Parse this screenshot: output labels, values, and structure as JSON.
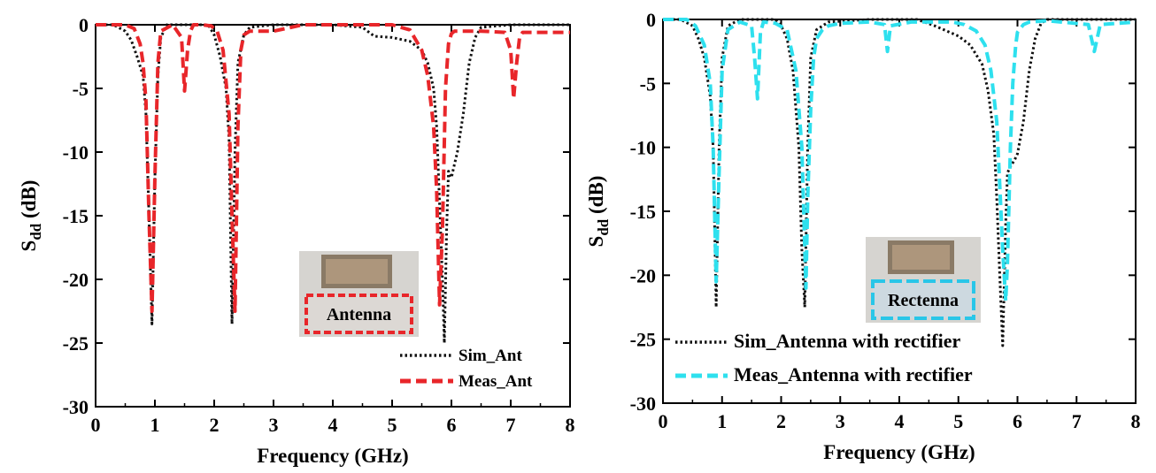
{
  "chart_data": [
    {
      "type": "line",
      "xlabel": "Frequency (GHz)",
      "ylabel_main": "S",
      "ylabel_sub": "dd",
      "ylabel_unit": " (dB)",
      "xlim": [
        0,
        8
      ],
      "ylim": [
        -30,
        0
      ],
      "xticks": [
        "0",
        "1",
        "2",
        "3",
        "4",
        "5",
        "6",
        "7",
        "8"
      ],
      "yticks": [
        "0",
        "-5",
        "-10",
        "-15",
        "-20",
        "-25",
        "-30"
      ],
      "grid": false,
      "legend_position": "bottom-right",
      "inset_label": "Antenna",
      "inset_color": "#e8262a",
      "series": [
        {
          "name": "Sim_Ant",
          "color": "#111111",
          "style": "dotted",
          "x": [
            0.0,
            0.3,
            0.5,
            0.6,
            0.7,
            0.8,
            0.85,
            0.9,
            0.95,
            1.0,
            1.05,
            1.1,
            1.2,
            1.5,
            1.9,
            2.0,
            2.1,
            2.2,
            2.25,
            2.3,
            2.35,
            2.4,
            2.5,
            2.6,
            3.0,
            4.0,
            4.5,
            4.7,
            5.0,
            5.3,
            5.5,
            5.6,
            5.7,
            5.75,
            5.8,
            5.85,
            5.88,
            5.92,
            5.95,
            6.0,
            6.05,
            6.1,
            6.2,
            6.3,
            6.4,
            6.5,
            7.0,
            8.0
          ],
          "y": [
            0,
            0,
            -0.5,
            -1.2,
            -2.5,
            -4,
            -7,
            -15,
            -23.5,
            -12,
            -4,
            -1,
            0,
            0,
            0,
            -0.8,
            -2.5,
            -5,
            -9,
            -23.5,
            -10,
            -3,
            -0.8,
            -0.2,
            0,
            0,
            -0.2,
            -0.9,
            -1.0,
            -1.3,
            -2.0,
            -3.0,
            -5,
            -8,
            -14,
            -20,
            -25,
            -16,
            -11.5,
            -12,
            -11,
            -10,
            -7,
            -3,
            -1,
            -0.2,
            0,
            0
          ]
        },
        {
          "name": "Meas_Ant",
          "color": "#e8262a",
          "style": "dashed",
          "x": [
            0.0,
            0.5,
            0.65,
            0.75,
            0.8,
            0.85,
            0.9,
            0.95,
            1.0,
            1.05,
            1.1,
            1.3,
            1.45,
            1.5,
            1.55,
            1.6,
            1.65,
            1.8,
            1.95,
            2.05,
            2.15,
            2.25,
            2.3,
            2.35,
            2.4,
            2.45,
            2.5,
            2.6,
            3.0,
            3.5,
            4.0,
            4.5,
            5.0,
            5.3,
            5.5,
            5.6,
            5.7,
            5.75,
            5.8,
            5.85,
            5.9,
            5.95,
            6.0,
            6.05,
            6.1,
            6.2,
            6.5,
            6.9,
            7.0,
            7.05,
            7.1,
            7.15,
            7.2,
            8.0
          ],
          "y": [
            0,
            0,
            -0.3,
            -1.5,
            -3,
            -6,
            -15,
            -22.5,
            -12,
            -3,
            -0.5,
            0,
            -1,
            -5.2,
            -2,
            -0.5,
            0,
            0,
            -0.1,
            -0.5,
            -2,
            -7,
            -15,
            -22.5,
            -8,
            -2,
            -0.8,
            -0.5,
            -0.5,
            0,
            0,
            0,
            0,
            -0.4,
            -2,
            -4,
            -8,
            -13,
            -22,
            -16,
            -5,
            -1.5,
            -0.7,
            -0.5,
            -0.5,
            -0.5,
            -0.5,
            -0.6,
            -2,
            -5.8,
            -3,
            -1,
            -0.6,
            -0.6
          ]
        }
      ]
    },
    {
      "type": "line",
      "xlabel": "Frequency (GHz)",
      "ylabel_main": "S",
      "ylabel_sub": "dd",
      "ylabel_unit": " (dB)",
      "xlim": [
        0,
        8
      ],
      "ylim": [
        -30,
        0
      ],
      "xticks": [
        "0",
        "1",
        "2",
        "3",
        "4",
        "5",
        "6",
        "7",
        "8"
      ],
      "yticks": [
        "0",
        "-5",
        "-10",
        "-15",
        "-20",
        "-25",
        "-30"
      ],
      "grid": false,
      "legend_position": "bottom-left",
      "inset_label": "Rectenna",
      "inset_color": "#29c6e8",
      "series": [
        {
          "name": "Sim_Antenna with rectifier",
          "color": "#111111",
          "style": "dotted",
          "x": [
            0.0,
            0.3,
            0.5,
            0.6,
            0.7,
            0.8,
            0.85,
            0.9,
            0.95,
            1.0,
            1.1,
            1.3,
            1.6,
            1.9,
            2.0,
            2.1,
            2.2,
            2.3,
            2.35,
            2.4,
            2.45,
            2.5,
            2.6,
            2.8,
            3.5,
            4.3,
            4.6,
            4.8,
            5.0,
            5.2,
            5.4,
            5.5,
            5.6,
            5.65,
            5.7,
            5.75,
            5.78,
            5.8,
            5.83,
            5.88,
            5.95,
            6.0,
            6.1,
            6.2,
            6.3,
            6.4,
            6.5,
            7.0,
            8.0
          ],
          "y": [
            0,
            0,
            -0.5,
            -1.5,
            -3,
            -6,
            -10,
            -22.5,
            -10,
            -3,
            -0.5,
            0,
            0,
            0,
            -0.5,
            -1.5,
            -4,
            -10,
            -18,
            -22.5,
            -10,
            -3,
            -0.8,
            -0.2,
            0,
            0,
            -0.5,
            -0.9,
            -1.3,
            -2,
            -3.5,
            -5.5,
            -9,
            -14,
            -20,
            -25.5,
            -20,
            -16,
            -12,
            -11.5,
            -11,
            -10.5,
            -8,
            -4,
            -1.5,
            -0.3,
            0,
            0,
            0
          ]
        },
        {
          "name": "Meas_Antenna with rectifier",
          "color": "#2ee0ee",
          "style": "dashed",
          "x": [
            0.0,
            0.4,
            0.55,
            0.7,
            0.8,
            0.85,
            0.9,
            0.95,
            1.0,
            1.1,
            1.3,
            1.5,
            1.55,
            1.6,
            1.65,
            1.7,
            1.9,
            2.1,
            2.25,
            2.35,
            2.42,
            2.45,
            2.5,
            2.55,
            2.6,
            2.7,
            2.8,
            3.0,
            3.5,
            3.75,
            3.8,
            3.85,
            4.2,
            4.9,
            5.1,
            5.3,
            5.45,
            5.55,
            5.65,
            5.7,
            5.75,
            5.8,
            5.83,
            5.88,
            5.92,
            5.97,
            6.0,
            6.1,
            6.2,
            6.5,
            7.2,
            7.3,
            7.4,
            8.0
          ],
          "y": [
            0,
            0,
            -0.5,
            -2,
            -5,
            -10,
            -20.5,
            -12,
            -4,
            -0.8,
            -0.2,
            -0.5,
            -3,
            -6.2,
            -1,
            -0.2,
            -0.3,
            -0.8,
            -4,
            -10,
            -21,
            -14,
            -7,
            -3,
            -1.5,
            -0.8,
            -0.5,
            -0.3,
            -0.2,
            -0.4,
            -2.5,
            -0.5,
            -0.2,
            -0.2,
            -0.4,
            -0.9,
            -2,
            -4,
            -8,
            -13,
            -18,
            -22,
            -19,
            -10,
            -5,
            -2,
            -1,
            -0.4,
            -0.2,
            -0.1,
            -0.4,
            -2.5,
            -0.4,
            -0.2
          ]
        }
      ]
    }
  ]
}
